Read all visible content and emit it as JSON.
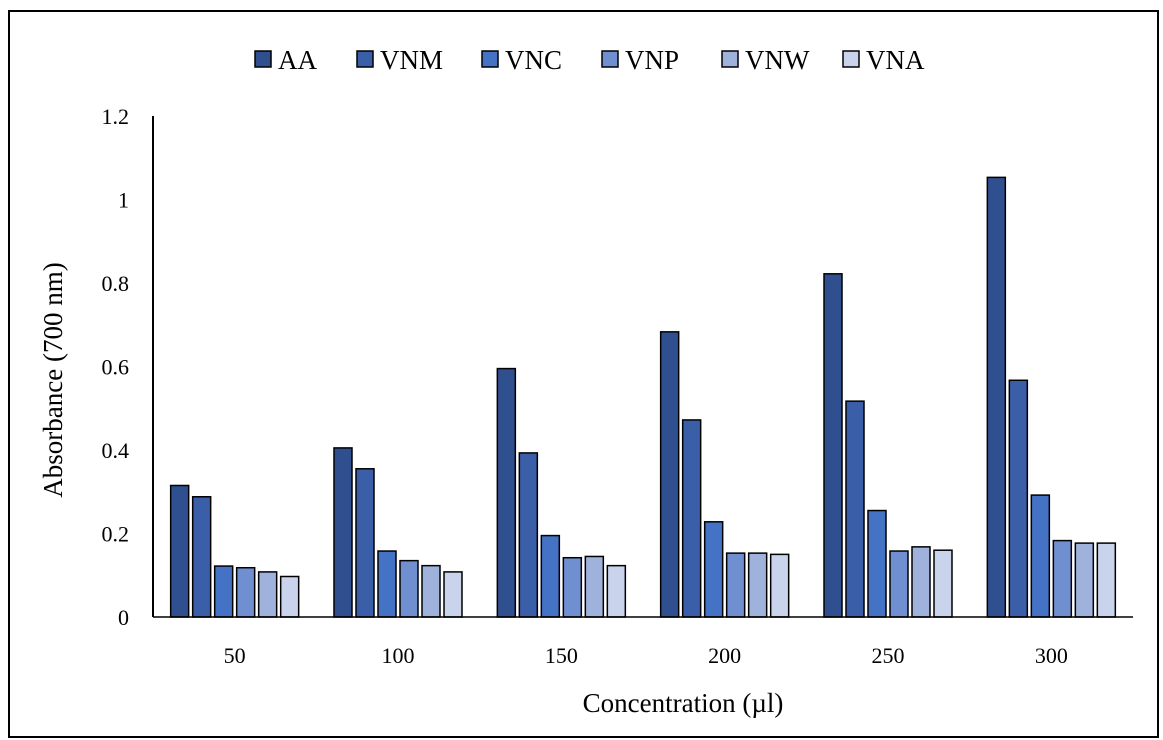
{
  "chart_data": {
    "type": "bar",
    "title": "",
    "xlabel": "Concentration (µl)",
    "ylabel": "Absorbance (700 nm)",
    "ylim": [
      0,
      1.2
    ],
    "yticks": [
      "0",
      "0.2",
      "0.4",
      "0.6",
      "0.8",
      "1",
      "1.2"
    ],
    "categories": [
      "50",
      "100",
      "150",
      "200",
      "250",
      "300"
    ],
    "legend_position": "top",
    "grid": false,
    "series": [
      {
        "name": "AA",
        "color": "#2f4f8f",
        "values": [
          0.315,
          0.405,
          0.595,
          0.683,
          0.822,
          1.053
        ]
      },
      {
        "name": "VNM",
        "color": "#3b5ea8",
        "values": [
          0.288,
          0.355,
          0.393,
          0.472,
          0.517,
          0.567
        ]
      },
      {
        "name": "VNC",
        "color": "#4472c4",
        "values": [
          0.122,
          0.158,
          0.195,
          0.228,
          0.255,
          0.292
        ]
      },
      {
        "name": "VNP",
        "color": "#6f8fd0",
        "values": [
          0.118,
          0.135,
          0.142,
          0.153,
          0.158,
          0.183
        ]
      },
      {
        "name": "VNW",
        "color": "#9fb2dc",
        "values": [
          0.108,
          0.123,
          0.145,
          0.153,
          0.168,
          0.177
        ]
      },
      {
        "name": "VNA",
        "color": "#c9d3ec",
        "values": [
          0.097,
          0.108,
          0.123,
          0.15,
          0.16,
          0.177
        ]
      }
    ]
  }
}
